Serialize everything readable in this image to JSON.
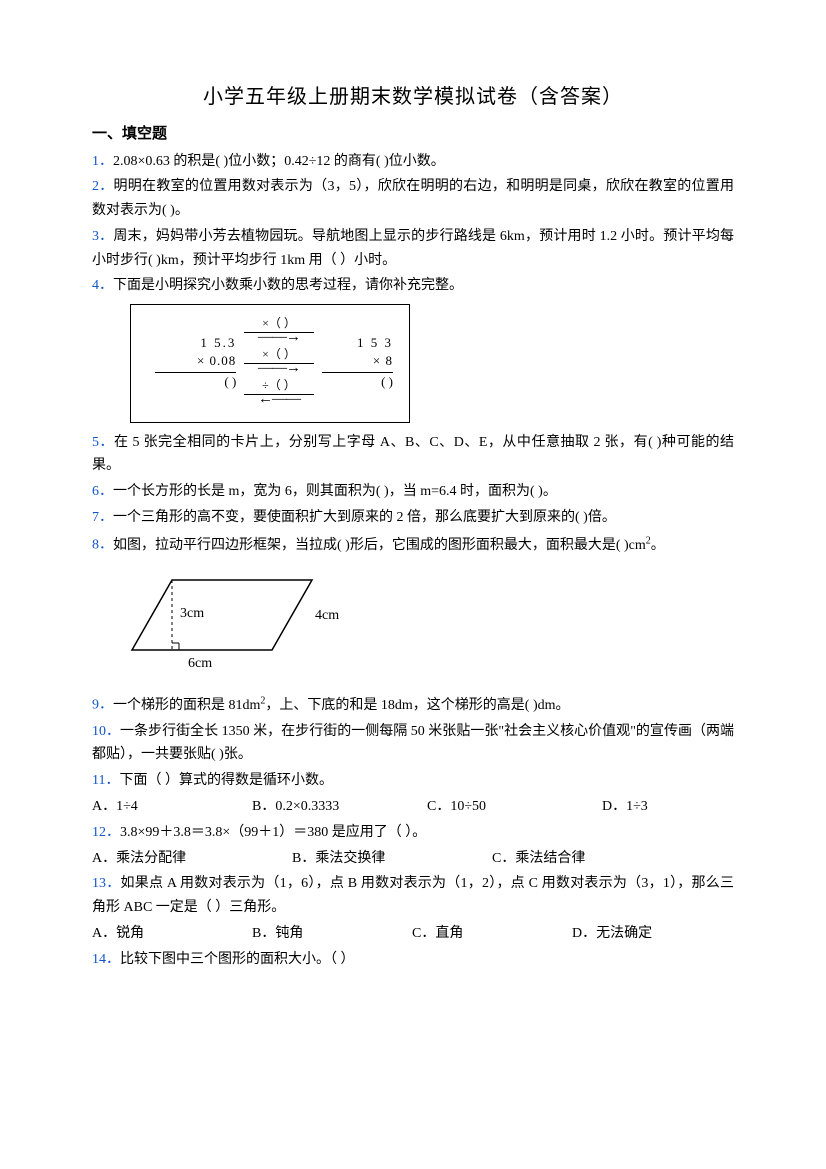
{
  "title": "小学五年级上册期末数学模拟试卷（含答案）",
  "section1": "一、填空题",
  "q1": {
    "num": "1．",
    "text": "2.08×0.63 的积是(      )位小数；0.42÷12 的商有(      )位小数。"
  },
  "q2": {
    "num": "2．",
    "text": "明明在教室的位置用数对表示为（3，5），欣欣在明明的右边，和明明是同桌，欣欣在教室的位置用数对表示为(      )。"
  },
  "q3": {
    "num": "3．",
    "text": "周末，妈妈带小芳去植物园玩。导航地图上显示的步行路线是 6km，预计用时 1.2 小时。预计平均每小时步行(      )km，预计平均步行 1km 用（      ）小时。"
  },
  "q4": {
    "num": "4．",
    "text": "下面是小明探究小数乘小数的思考过程，请你补充完整。"
  },
  "diagram": {
    "left_top": "1 5.3",
    "left_mid": "×  0.08",
    "left_bot": "(          )",
    "op1": "×（   ）",
    "op2": "×（   ）",
    "op3": "÷（   ）",
    "right_top": "1 5 3",
    "right_mid": "×    8",
    "right_bot": "(          )"
  },
  "q5": {
    "num": "5．",
    "text": "在 5 张完全相同的卡片上，分别写上字母 A、B、C、D、E，从中任意抽取 2 张，有(      )种可能的结果。"
  },
  "q6": {
    "num": "6．",
    "text": "一个长方形的长是 m，宽为 6，则其面积为(      )，当 m=6.4 时，面积为(      )。"
  },
  "q7": {
    "num": "7．",
    "text": "一个三角形的高不变，要使面积扩大到原来的 2 倍，那么底要扩大到原来的(      )倍。"
  },
  "q8": {
    "num": "8．",
    "text": "如图，拉动平行四边形框架，当拉成(      )形后，它围成的图形面积最大，面积最大是(      )cm²。"
  },
  "para": {
    "h": "3cm",
    "right": "4cm",
    "base": "6cm"
  },
  "q9": {
    "num": "9．",
    "text": "一个梯形的面积是 81dm²，上、下底的和是 18dm，这个梯形的高是(      )dm。"
  },
  "q10": {
    "num": "10．",
    "text": "一条步行街全长 1350 米，在步行街的一侧每隔 50 米张贴一张\"社会主义核心价值观\"的宣传画（两端都贴），一共要张贴(      )张。"
  },
  "q11": {
    "num": "11．",
    "text": "下面（      ）算式的得数是循环小数。",
    "a": "A．1÷4",
    "b": "B．0.2×0.3333",
    "c": "C．10÷50",
    "d": "D．1÷3"
  },
  "q12": {
    "num": "12．",
    "text": "3.8×99＋3.8＝3.8×（99＋1）＝380 是应用了（      ）。",
    "a": "A．乘法分配律",
    "b": "B．乘法交换律",
    "c": "C．乘法结合律"
  },
  "q13": {
    "num": "13．",
    "text": "如果点 A 用数对表示为（1，6），点 B 用数对表示为（1，2），点 C 用数对表示为（3，1），那么三角形 ABC 一定是（      ）三角形。",
    "a": "A．锐角",
    "b": "B．钝角",
    "c": "C．直角",
    "d": "D．无法确定"
  },
  "q14": {
    "num": "14．",
    "text": "比较下图中三个图形的面积大小。（      ）"
  }
}
